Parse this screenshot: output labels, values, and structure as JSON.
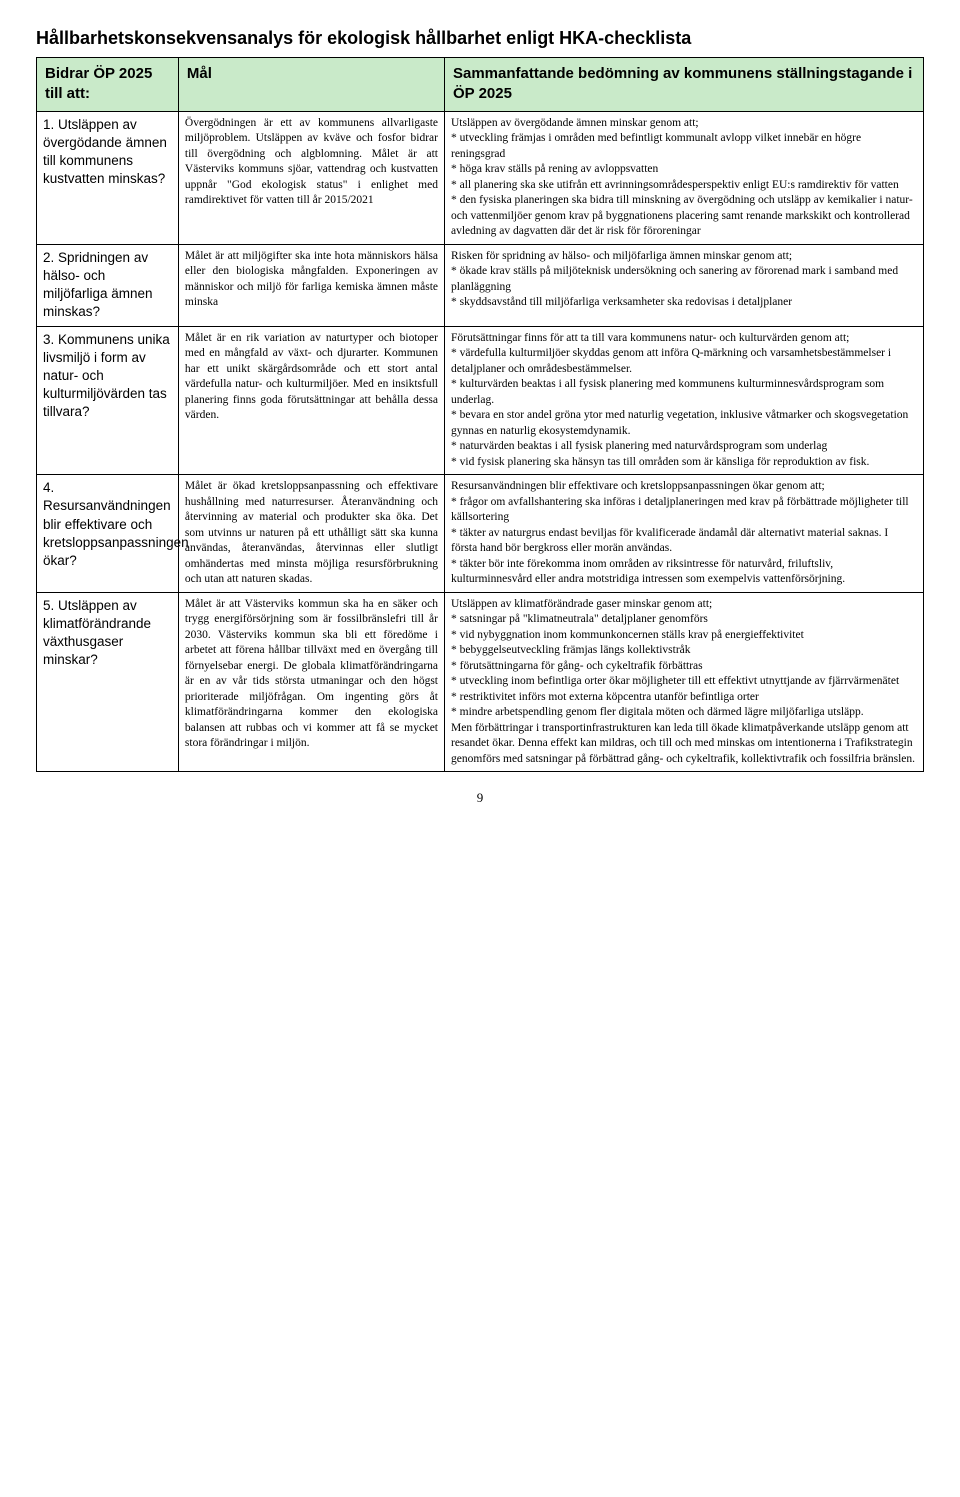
{
  "title": "Hållbarhetskonsekvensanalys för ekologisk hållbarhet enligt HKA-checklista",
  "headers": {
    "bidrar": "Bidrar ÖP 2025 till att:",
    "mal": "Mål",
    "samm": "Sammanfattande bedömning av kommunens ställningstagande i ÖP 2025"
  },
  "header_bg": "#c9eac9",
  "rows": [
    {
      "bidrar": "1. Utsläppen av övergödande ämnen till kommunens kustvatten minskas?",
      "mal": "Övergödningen är ett av kommunens allvarligaste miljöproblem. Utsläppen av kväve och fosfor bidrar till övergödning och algblomning. Målet är att Västerviks kommuns sjöar, vattendrag och kustvatten uppnår \"God ekologisk status\" i enlighet med ramdirektivet för vatten till år 2015/2021",
      "samm": "Utsläppen av övergödande ämnen minskar genom att;\n* utveckling främjas i områden med befintligt kommunalt avlopp vilket innebär en högre reningsgrad\n* höga krav ställs på rening av avloppsvatten\n* all planering ska ske utifrån ett avrinningsområdesperspektiv enligt EU:s ramdirektiv för vatten\n* den fysiska planeringen ska bidra till minskning av övergödning och utsläpp av kemikalier i natur- och vattenmiljöer genom krav på byggnationens placering samt renande markskikt och kontrollerad avledning av dagvatten där det är risk för föroreningar"
    },
    {
      "bidrar": "2. Spridningen av hälso- och miljöfarliga ämnen minskas?",
      "mal": "Målet är att miljögifter ska inte hota människors hälsa eller den biologiska mångfalden. Exponeringen av människor och miljö för farliga kemiska ämnen måste minska",
      "samm": "Risken för spridning av hälso- och miljöfarliga ämnen minskar genom att;\n* ökade krav ställs på miljöteknisk undersökning och sanering av förorenad mark i samband med planläggning\n* skyddsavstånd till miljöfarliga verksamheter ska redovisas i detaljplaner"
    },
    {
      "bidrar": "3. Kommunens unika livsmiljö i form av natur- och kulturmiljövärden tas tillvara?",
      "mal": "Målet är en rik variation av naturtyper och biotoper med en mångfald av växt- och djurarter. Kommunen har ett unikt skärgårdsområde och ett stort antal värdefulla natur- och kulturmiljöer. Med en insiktsfull planering finns goda förutsättningar att behålla dessa värden.",
      "samm": "Förutsättningar finns för att ta till vara kommunens natur- och kulturvärden genom att;\n* värdefulla kulturmiljöer skyddas genom att införa Q-märkning och varsamhetsbestämmelser i detaljplaner och områdesbestämmelser.\n* kulturvärden beaktas i all fysisk planering med kommunens kulturminnesvårdsprogram som underlag.\n* bevara en stor andel gröna ytor med naturlig vegetation, inklusive våtmarker och skogsvegetation gynnas en naturlig ekosystemdynamik.\n* naturvärden beaktas i all fysisk planering med naturvårdsprogram som underlag\n* vid fysisk planering ska hänsyn tas till områden som är känsliga för reproduktion av fisk."
    },
    {
      "bidrar": "4. Resursanvändningen blir effektivare och kretsloppsanpassningen ökar?",
      "mal": "Målet är ökad kretsloppsanpassning och effektivare hushållning med naturresurser. Återanvändning och återvinning av material och produkter ska öka. Det som utvinns ur naturen på ett uthålligt sätt ska kunna användas, återanvändas, återvinnas eller slutligt omhändertas med minsta möjliga resursförbrukning och utan att naturen skadas.",
      "samm": "Resursanvändningen blir effektivare och kretsloppsanpassningen ökar genom att;\n* frågor om avfallshantering ska införas i detaljplaneringen med krav på förbättrade möjligheter till källsortering\n* täkter av naturgrus endast beviljas för kvalificerade ändamål där alternativt material saknas. I första hand bör bergkross eller morän användas.\n* täkter bör inte förekomma inom områden av riksintresse för naturvård, friluftsliv, kulturminnesvård eller andra motstridiga intressen som exempelvis vattenförsörjning."
    },
    {
      "bidrar": "5. Utsläppen av klimatförändrande växthusgaser minskar?",
      "mal": "Målet är att Västerviks kommun ska ha en säker och trygg energiförsörjning som är fossilbränslefri till år 2030. Västerviks kommun ska bli ett föredöme i arbetet att förena hållbar tillväxt med en övergång till förnyelsebar energi. De globala klimatförändringarna är en av vår tids största utmaningar och den högst prioriterade miljöfrågan. Om ingenting görs åt klimatförändringarna kommer den ekologiska balansen att rubbas och vi kommer att få se mycket stora förändringar i miljön.",
      "samm": "Utsläppen av klimatförändrade gaser minskar genom att;\n* satsningar på \"klimatneutrala\" detaljplaner genomförs\n* vid nybyggnation inom kommunkoncernen ställs krav på energieffektivitet\n* bebyggelseutveckling främjas längs kollektivstråk\n* förutsättningarna för gång- och cykeltrafik förbättras\n* utveckling inom befintliga orter ökar möjligheter till ett effektivt utnyttjande av fjärrvärmenätet\n* restriktivitet införs mot externa köpcentra utanför befintliga orter\n* mindre arbetspendling genom fler digitala möten och därmed lägre miljöfarliga utsläpp.\nMen förbättringar i transportinfrastrukturen kan leda till ökade klimatpåverkande utsläpp genom att resandet ökar. Denna effekt kan mildras, och till och med minskas om intentionerna i Trafikstrategin genomförs med satsningar på förbättrad gång- och cykeltrafik, kollektivtrafik och fossilfria bränslen."
    }
  ],
  "page_number": "9"
}
